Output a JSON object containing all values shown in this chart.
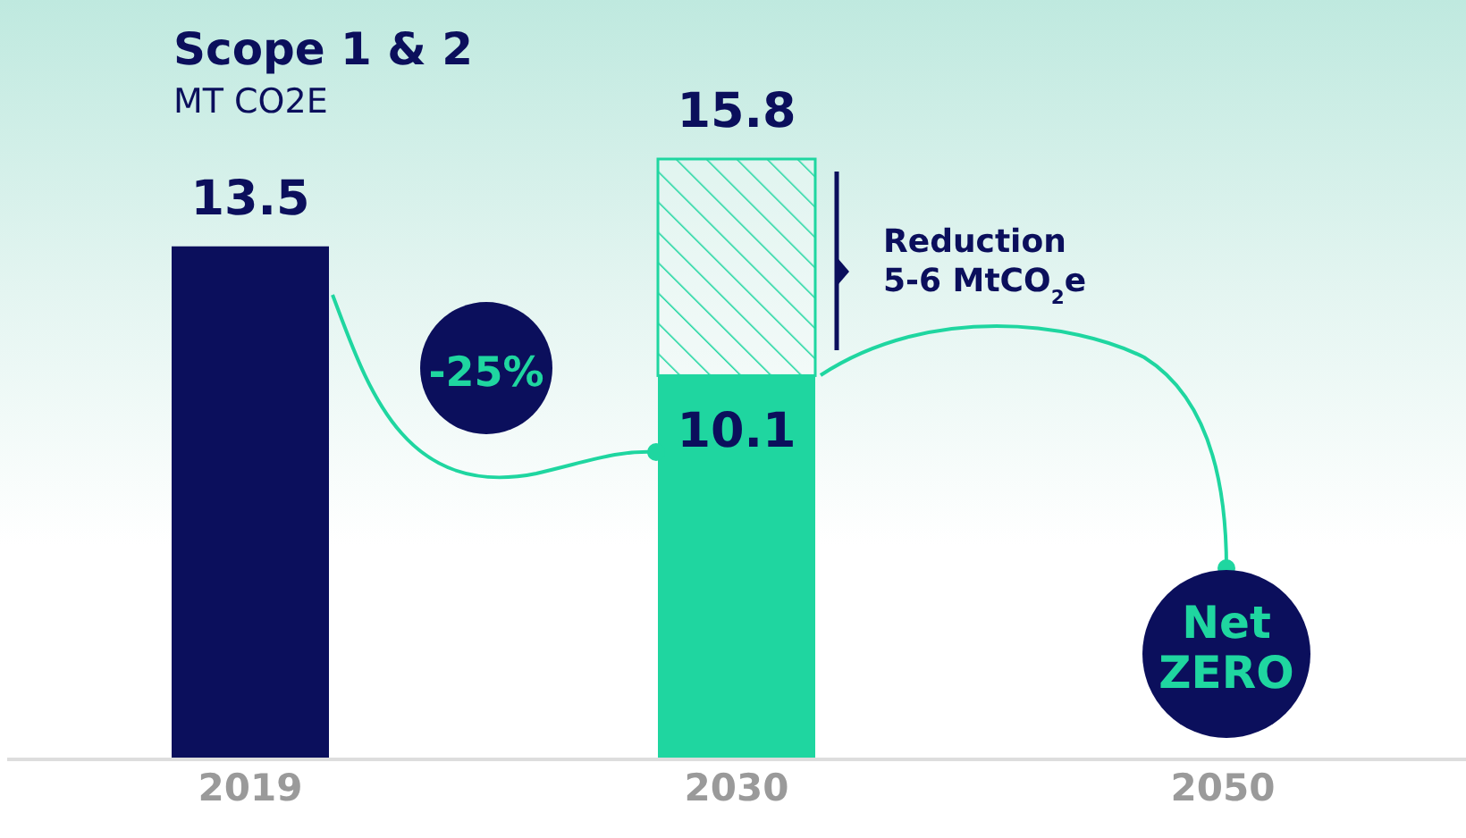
{
  "chart_data": {
    "type": "bar",
    "title": "Scope 1 & 2",
    "subtitle": "MT CO2E",
    "categories": [
      "2019",
      "2030",
      "2050"
    ],
    "stacked": true,
    "series": [
      {
        "colors": [
          "#0b0f5c",
          "#1fd6a0",
          null
        ],
        "values": [
          13.5,
          10.1,
          null
        ],
        "value_labels": [
          "13.5",
          "10.1",
          null
        ]
      },
      {
        "color": "#1fd6a0",
        "values": [
          null,
          5.7,
          null
        ]
      }
    ],
    "totals": [
      null,
      "15.8",
      null
    ],
    "annotations": [
      "-25%",
      "Reduction 5-6 MtCO$_{2}$e",
      "Net ZERO"
    ]
  }
}
